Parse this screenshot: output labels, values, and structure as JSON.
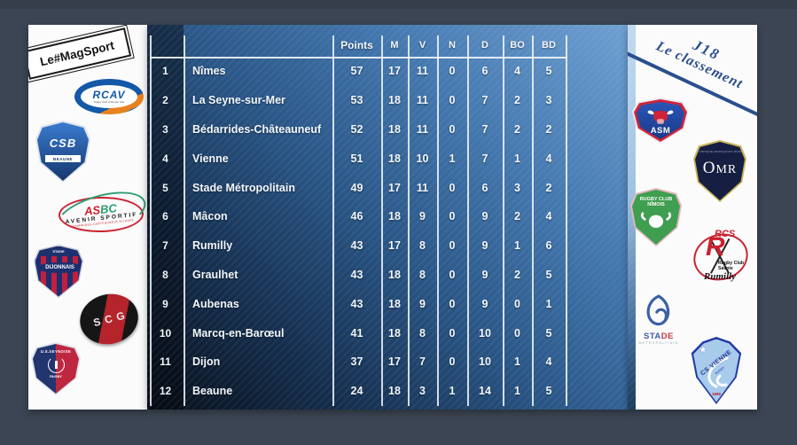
{
  "header_badge": {
    "line1": "J18",
    "line2": "Le classement"
  },
  "branding": {
    "magsport": "Le#MagSport"
  },
  "chart_data": {
    "type": "table",
    "title": "J18 Le classement",
    "columns": [
      "",
      "",
      "Points",
      "M",
      "V",
      "N",
      "D",
      "BO",
      "BD"
    ],
    "rows": [
      [
        "1",
        "Nîmes",
        "57",
        "17",
        "11",
        "0",
        "6",
        "4",
        "5"
      ],
      [
        "2",
        "La Seyne-sur-Mer",
        "53",
        "18",
        "11",
        "0",
        "7",
        "2",
        "3"
      ],
      [
        "3",
        "Bédarrides-Châteauneuf",
        "52",
        "18",
        "11",
        "0",
        "7",
        "2",
        "2"
      ],
      [
        "4",
        "Vienne",
        "51",
        "18",
        "10",
        "1",
        "7",
        "1",
        "4"
      ],
      [
        "5",
        "Stade Métropolitain",
        "49",
        "17",
        "11",
        "0",
        "6",
        "3",
        "2"
      ],
      [
        "6",
        "Mâcon",
        "46",
        "18",
        "9",
        "0",
        "9",
        "2",
        "4"
      ],
      [
        "7",
        "Rumilly",
        "43",
        "17",
        "8",
        "0",
        "9",
        "1",
        "6"
      ],
      [
        "8",
        "Graulhet",
        "43",
        "18",
        "8",
        "0",
        "9",
        "2",
        "5"
      ],
      [
        "9",
        "Aubenas",
        "43",
        "18",
        "9",
        "0",
        "9",
        "0",
        "1"
      ],
      [
        "10",
        "Marcq-en-Barœul",
        "41",
        "18",
        "8",
        "0",
        "10",
        "0",
        "5"
      ],
      [
        "11",
        "Dijon",
        "37",
        "17",
        "7",
        "0",
        "10",
        "1",
        "4"
      ],
      [
        "12",
        "Beaune",
        "24",
        "18",
        "3",
        "1",
        "14",
        "1",
        "5"
      ]
    ]
  },
  "left_logos": {
    "rcav": {
      "name": "RCAV",
      "sub": "Rugby Club Aubenas Vals"
    },
    "csb": {
      "name": "CSB",
      "sub": "BEAUNE"
    },
    "asbc": {
      "name1": "AS",
      "name2": "BC",
      "line": "AVENIR SPORTIF",
      "sub": "BÉDARRIDES-CHÂTEAUNEUF DU PAPE"
    },
    "dijonnais": {
      "top": "STADE",
      "name": "DIJONNAIS"
    },
    "scg": {
      "name": "SCG"
    },
    "seynoise": {
      "name": "U.S.SEYNOISE",
      "sub": "RUGBY"
    }
  },
  "right_logos": {
    "asm": {
      "name": "ASM"
    },
    "omr": {
      "top": "OLYMPIQUE MARCQUOIS RUGBY",
      "name": "MR",
      "initial": "O"
    },
    "nimois": {
      "line1": "RUGBY CLUB",
      "line2": "NÎMOIS"
    },
    "rumilly": {
      "abbr": "RCS",
      "initial": "R",
      "line1": "Rugby Club",
      "line2": "Savoie",
      "script": "Rumilly"
    },
    "stade_metro": {
      "name1": "STA",
      "name2": "DE",
      "sub": "METROPOLITAIN"
    },
    "vienne": {
      "name": "CS VIENNE",
      "sub": "RUGBY",
      "year": "1899"
    }
  },
  "colors": {
    "background": "#3b4553",
    "table_light": "#6fa0d2",
    "table_dark": "#070e18",
    "grid_line": "#f2f7fc",
    "badge_blue": "#2a4f8e"
  }
}
